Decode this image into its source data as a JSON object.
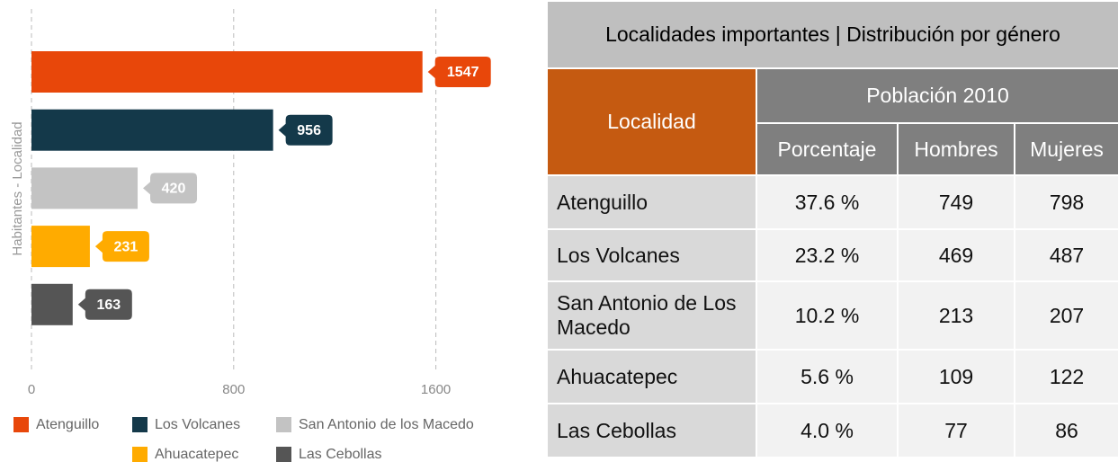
{
  "chart_data": {
    "type": "bar",
    "orientation": "horizontal",
    "y_axis_label": "Habitantes - Localidad",
    "categories": [
      "Atenguillo",
      "Los Volcanes",
      "San Antonio de los Macedo",
      "Ahuacatepec",
      "Las Cebollas"
    ],
    "values": [
      1547,
      956,
      420,
      231,
      163
    ],
    "colors": [
      "#e8470a",
      "#14394a",
      "#c3c3c3",
      "#ffab00",
      "#555555"
    ],
    "xlim": [
      0,
      2000
    ],
    "xticks": [
      0,
      800,
      1600
    ],
    "grid": true,
    "legend": "bottom"
  },
  "table": {
    "title": "Localidades importantes | Distribución por género",
    "header": {
      "first": "Localidad",
      "group": "Población 2010",
      "columns": [
        "Porcentaje",
        "Hombres",
        "Mujeres"
      ]
    },
    "rows": [
      [
        "Atenguillo",
        "37.6 %",
        "749",
        "798"
      ],
      [
        "Los Volcanes",
        "23.2 %",
        "469",
        "487"
      ],
      [
        "San Antonio de Los Macedo",
        "10.2 %",
        "213",
        "207"
      ],
      [
        "Ahuacatepec",
        "5.6 %",
        "109",
        "122"
      ],
      [
        "Las Cebollas",
        "4.0 %",
        "77",
        "86"
      ]
    ]
  }
}
